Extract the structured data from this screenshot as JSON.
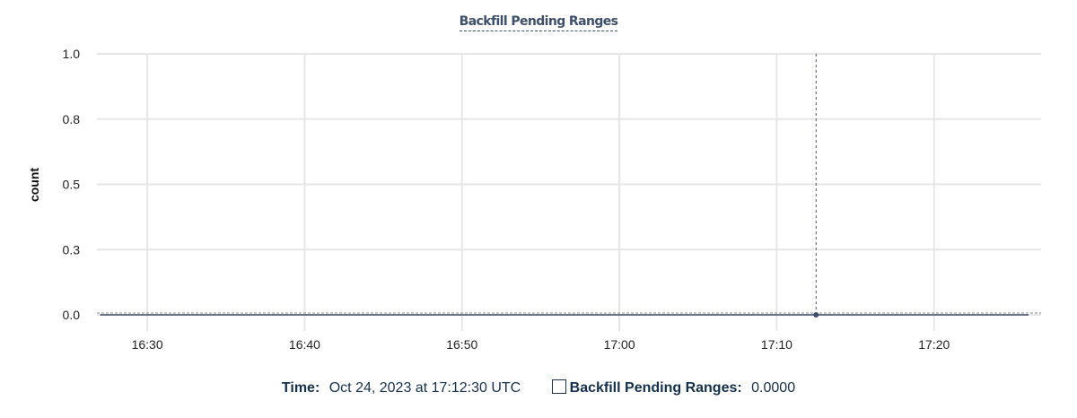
{
  "chart_data": {
    "type": "line",
    "title": "Backfill Pending Ranges",
    "ylabel": "count",
    "xlabel": "",
    "ylim": [
      0,
      1
    ],
    "y_ticks": [
      0,
      0.25,
      0.5,
      0.75,
      1.0
    ],
    "y_tick_labels": [
      "0.0",
      "0.3",
      "0.5",
      "0.8",
      "1.0"
    ],
    "x_range": [
      "16:26:48",
      "17:26:48"
    ],
    "x_ticks": [
      "16:30",
      "16:40",
      "16:50",
      "17:00",
      "17:10",
      "17:20"
    ],
    "grid": true,
    "series": [
      {
        "name": "Backfill Pending Ranges",
        "color": "#3d4f6a",
        "x": [
          "16:27:00",
          "17:26:00"
        ],
        "values": [
          0,
          0
        ]
      }
    ],
    "cursor": {
      "time": "17:12:30",
      "value": 0
    }
  },
  "legend": {
    "time_label": "Time:",
    "time_value": "Oct 24, 2023 at 17:12:30 UTC",
    "series_label": "Backfill Pending Ranges:",
    "series_value": "0.0000"
  }
}
